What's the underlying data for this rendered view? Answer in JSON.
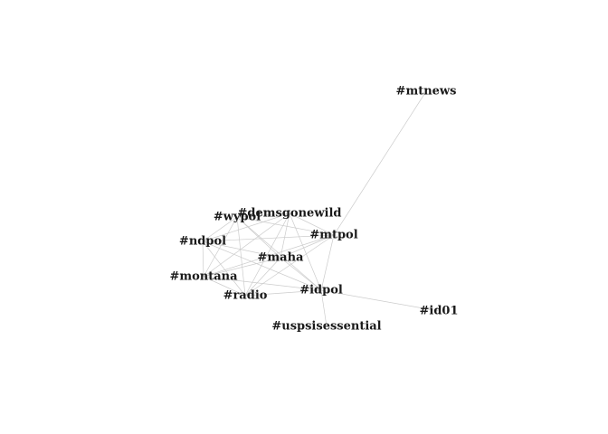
{
  "nodes": [
    {
      "id": "mtnews",
      "label": "#mtnews"
    },
    {
      "id": "demsgonewild",
      "label": "#demsgonewild"
    },
    {
      "id": "wypol",
      "label": "#wypol"
    },
    {
      "id": "ndpol",
      "label": "#ndpol"
    },
    {
      "id": "mtpol",
      "label": "#mtpol"
    },
    {
      "id": "maha",
      "label": "#maha"
    },
    {
      "id": "montana",
      "label": "#montana"
    },
    {
      "id": "idpol",
      "label": "#idpol"
    },
    {
      "id": "radio",
      "label": "#radio"
    },
    {
      "id": "id01",
      "label": "#id01"
    },
    {
      "id": "uspsisessential",
      "label": "#uspsisessential"
    }
  ],
  "edges": [
    [
      "mtnews",
      "mtpol"
    ],
    [
      "idpol",
      "id01"
    ],
    [
      "idpol",
      "uspsisessential"
    ],
    [
      "demsgonewild",
      "wypol"
    ],
    [
      "demsgonewild",
      "ndpol"
    ],
    [
      "demsgonewild",
      "mtpol"
    ],
    [
      "demsgonewild",
      "maha"
    ],
    [
      "demsgonewild",
      "montana"
    ],
    [
      "demsgonewild",
      "radio"
    ],
    [
      "demsgonewild",
      "idpol"
    ],
    [
      "wypol",
      "ndpol"
    ],
    [
      "wypol",
      "mtpol"
    ],
    [
      "wypol",
      "maha"
    ],
    [
      "wypol",
      "montana"
    ],
    [
      "wypol",
      "radio"
    ],
    [
      "wypol",
      "idpol"
    ],
    [
      "ndpol",
      "mtpol"
    ],
    [
      "ndpol",
      "maha"
    ],
    [
      "ndpol",
      "montana"
    ],
    [
      "ndpol",
      "radio"
    ],
    [
      "ndpol",
      "idpol"
    ],
    [
      "mtpol",
      "maha"
    ],
    [
      "mtpol",
      "montana"
    ],
    [
      "mtpol",
      "radio"
    ],
    [
      "mtpol",
      "idpol"
    ],
    [
      "maha",
      "montana"
    ],
    [
      "maha",
      "radio"
    ],
    [
      "maha",
      "idpol"
    ],
    [
      "montana",
      "radio"
    ],
    [
      "montana",
      "idpol"
    ],
    [
      "radio",
      "idpol"
    ]
  ]
}
